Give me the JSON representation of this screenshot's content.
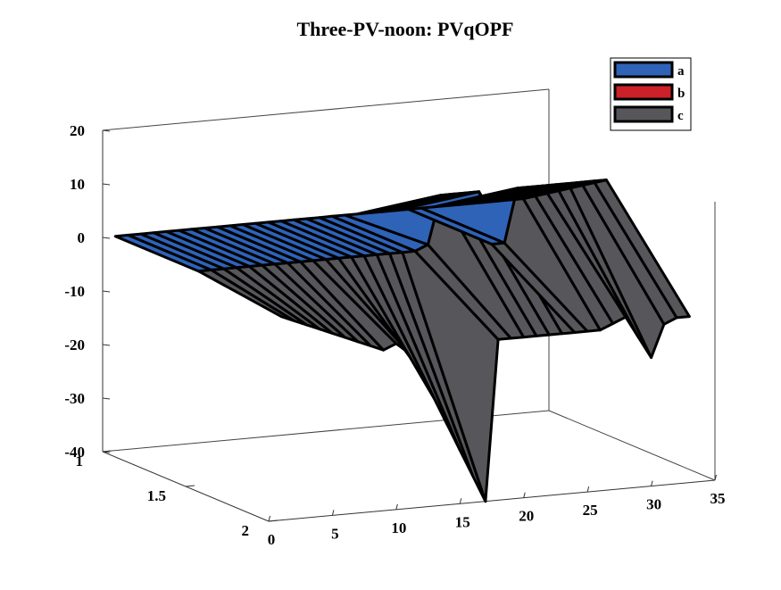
{
  "chart_data": {
    "type": "3d-surface",
    "title": "Three-PV-noon: PVqOPF",
    "xlabel": "",
    "ylabel": "",
    "zlabel": "",
    "xlim": [
      0,
      35
    ],
    "ylim": [
      1,
      2
    ],
    "zlim": [
      -40,
      20
    ],
    "x_ticks": [
      0,
      5,
      10,
      15,
      20,
      25,
      30,
      35
    ],
    "y_ticks": [
      1,
      1.5,
      2
    ],
    "z_ticks": [
      -40,
      -30,
      -20,
      -10,
      0,
      10,
      20
    ],
    "legend_position": "top-right",
    "colors": {
      "a": "#2e63b8",
      "b": "#cc2128",
      "c": "#57565a"
    },
    "series": [
      {
        "name": "a",
        "x": [
          1,
          2,
          3,
          4,
          5,
          6,
          7,
          8,
          9,
          10,
          11,
          12,
          13,
          14,
          15,
          16,
          17,
          18,
          19,
          20,
          21,
          22,
          23,
          24,
          25,
          26,
          27,
          28,
          29,
          30,
          31,
          32,
          33
        ],
        "values": [
          0,
          0,
          0,
          0,
          0,
          0,
          0,
          0,
          0,
          0,
          0,
          0,
          0,
          0,
          0,
          0,
          0,
          0,
          0,
          0,
          0,
          0,
          0,
          0,
          0,
          0,
          0,
          0,
          0,
          0,
          0,
          0,
          0
        ]
      },
      {
        "name": "b",
        "x": [
          1,
          2,
          3,
          4,
          5,
          6,
          7,
          8,
          9,
          10,
          11,
          12,
          13,
          14,
          15,
          16,
          17,
          18,
          19,
          20,
          21,
          22,
          23,
          24,
          25,
          26,
          27,
          28,
          29,
          30,
          31,
          32,
          33
        ],
        "values": [
          0,
          0,
          0,
          0,
          0,
          0,
          0,
          0,
          0,
          0,
          0,
          0,
          0,
          0,
          0,
          0,
          0,
          0,
          1,
          10,
          10,
          10,
          10,
          0,
          0,
          10,
          10,
          10,
          10,
          10,
          10,
          10,
          10
        ]
      },
      {
        "name": "c",
        "x": [
          1,
          2,
          3,
          4,
          5,
          6,
          7,
          8,
          9,
          10,
          11,
          12,
          13,
          14,
          15,
          16,
          17,
          18,
          19,
          20,
          21,
          22,
          23,
          24,
          25,
          26,
          27,
          28,
          29,
          30,
          31,
          32,
          33
        ],
        "values": [
          -2,
          -3,
          -4,
          -5,
          -6,
          -7,
          -8,
          -9,
          -10,
          -9,
          -11,
          -15,
          -20,
          -25,
          -30,
          -35,
          -40,
          -10,
          -10,
          -10,
          -10,
          -10,
          -10,
          -10,
          -10,
          -10,
          -9,
          -8,
          -12,
          -16,
          -10,
          -9,
          -9
        ]
      }
    ]
  }
}
